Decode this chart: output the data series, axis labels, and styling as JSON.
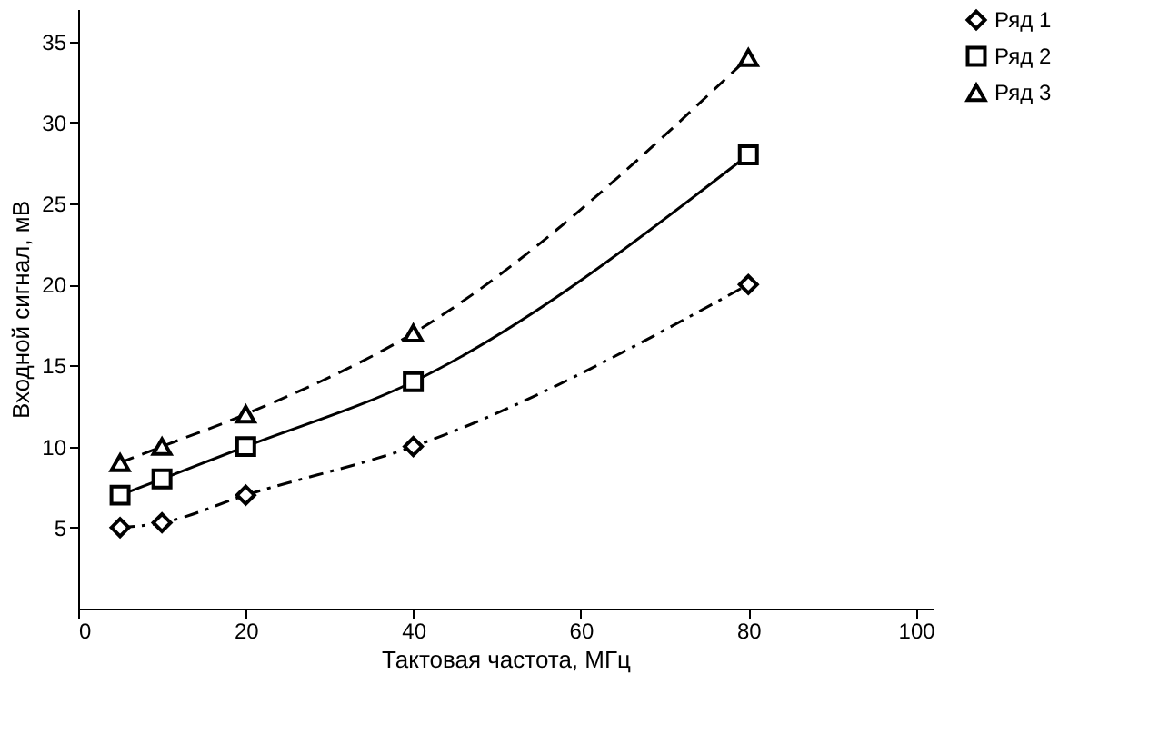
{
  "chart_data": {
    "type": "line",
    "xlabel": "Тактовая частота, МГц",
    "ylabel": "Входной сигнал, мВ",
    "x": [
      5,
      10,
      20,
      40,
      80
    ],
    "series": [
      {
        "name": "Ряд 1",
        "color": "#000000",
        "values": [
          5,
          5.3,
          7,
          10,
          20
        ],
        "marker": "diamond",
        "line_style": "dashdot"
      },
      {
        "name": "Ряд 2",
        "color": "#000000",
        "values": [
          7,
          8,
          10,
          14,
          28
        ],
        "marker": "square",
        "line_style": "solid"
      },
      {
        "name": "Ряд 3",
        "color": "#000000",
        "values": [
          9,
          10,
          12,
          17,
          34
        ],
        "marker": "triangle",
        "line_style": "dashed"
      }
    ],
    "xlim": [
      0,
      102
    ],
    "xticks": [
      0,
      20,
      40,
      60,
      80,
      100
    ],
    "ylim": [
      0,
      37
    ],
    "yticks": [
      5,
      10,
      15,
      20,
      25,
      30,
      35
    ],
    "grid": false,
    "legend": "right"
  }
}
